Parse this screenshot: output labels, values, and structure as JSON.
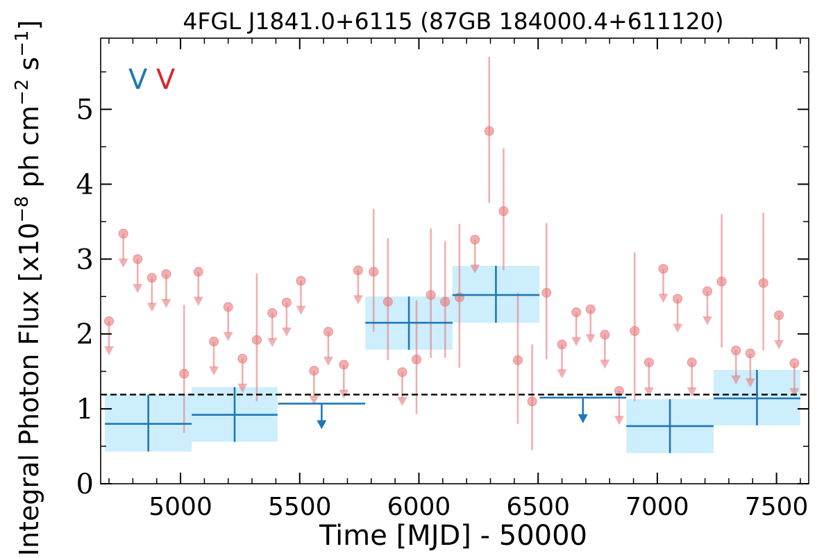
{
  "chart_data": {
    "type": "scatter",
    "title": "4FGL J1841.0+6115 (87GB 184000.4+611120)",
    "xlabel": "Time [MJD] - 50000",
    "ylabel": "Integral Photon Flux [x10^-8 ph cm^-2 s^-1]",
    "xlim": [
      4665,
      7635
    ],
    "ylim": [
      0,
      5.95
    ],
    "xticks": [
      5000,
      5500,
      6000,
      6500,
      7000,
      7500
    ],
    "yticks": [
      0,
      1,
      2,
      3,
      4,
      5
    ],
    "grid": false,
    "legend_labels": [
      {
        "text": "V",
        "color": "#1f77b4"
      },
      {
        "text": "V",
        "color": "#d62728"
      }
    ],
    "mean_flux": 1.19,
    "series": [
      {
        "color": "#1f77b4",
        "band_color": "#cdeefc",
        "points": [
          {
            "x": 4865,
            "x_err": 182,
            "y": 0.8,
            "y_lo": 0.43,
            "y_hi": 1.19,
            "upper_limit": false
          },
          {
            "x": 5227,
            "x_err": 180,
            "y": 0.92,
            "y_lo": 0.56,
            "y_hi": 1.29,
            "upper_limit": false
          },
          {
            "x": 5592,
            "x_err": 183,
            "y": 1.07,
            "upper_limit": true
          },
          {
            "x": 5958,
            "x_err": 183,
            "y": 2.15,
            "y_lo": 1.79,
            "y_hi": 2.5,
            "upper_limit": false
          },
          {
            "x": 6323,
            "x_err": 183,
            "y": 2.52,
            "y_lo": 2.15,
            "y_hi": 2.91,
            "upper_limit": false
          },
          {
            "x": 6688,
            "x_err": 182,
            "y": 1.15,
            "upper_limit": true
          },
          {
            "x": 7053,
            "x_err": 183,
            "y": 0.77,
            "y_lo": 0.41,
            "y_hi": 1.13,
            "upper_limit": false
          },
          {
            "x": 7418,
            "x_err": 182,
            "y": 1.14,
            "y_lo": 0.78,
            "y_hi": 1.52,
            "upper_limit": false
          }
        ]
      },
      {
        "color": "#e8797b",
        "points": [
          {
            "x": 4700,
            "y": 2.17,
            "upper_limit": true
          },
          {
            "x": 4760,
            "y": 3.34,
            "upper_limit": true
          },
          {
            "x": 4820,
            "y": 3.0,
            "upper_limit": true
          },
          {
            "x": 4880,
            "y": 2.75,
            "upper_limit": true
          },
          {
            "x": 4940,
            "y": 2.8,
            "upper_limit": true
          },
          {
            "x": 5015,
            "y": 1.47,
            "y_lo": 0.68,
            "y_hi": 2.39,
            "upper_limit": false
          },
          {
            "x": 5075,
            "y": 2.83,
            "upper_limit": true
          },
          {
            "x": 5140,
            "y": 1.9,
            "upper_limit": true
          },
          {
            "x": 5200,
            "y": 2.36,
            "upper_limit": true
          },
          {
            "x": 5260,
            "y": 1.67,
            "upper_limit": true
          },
          {
            "x": 5320,
            "y": 1.92,
            "y_lo": 1.1,
            "y_hi": 2.81,
            "upper_limit": false
          },
          {
            "x": 5385,
            "y": 2.28,
            "upper_limit": true
          },
          {
            "x": 5445,
            "y": 2.42,
            "upper_limit": true
          },
          {
            "x": 5505,
            "y": 2.71,
            "upper_limit": true
          },
          {
            "x": 5560,
            "y": 1.51,
            "upper_limit": true
          },
          {
            "x": 5620,
            "y": 2.03,
            "upper_limit": true
          },
          {
            "x": 5685,
            "y": 1.59,
            "upper_limit": true
          },
          {
            "x": 5745,
            "y": 2.85,
            "upper_limit": true
          },
          {
            "x": 5810,
            "y": 2.83,
            "y_lo": 2.03,
            "y_hi": 3.67,
            "upper_limit": false
          },
          {
            "x": 5870,
            "y": 2.43,
            "y_lo": 1.65,
            "y_hi": 3.28,
            "upper_limit": false
          },
          {
            "x": 5930,
            "y": 1.49,
            "upper_limit": true
          },
          {
            "x": 5990,
            "y": 1.66,
            "y_lo": 0.93,
            "y_hi": 2.45,
            "upper_limit": false
          },
          {
            "x": 6050,
            "y": 2.52,
            "y_lo": 1.68,
            "y_hi": 3.41,
            "upper_limit": false
          },
          {
            "x": 6110,
            "y": 2.43,
            "y_lo": 1.68,
            "y_hi": 3.24,
            "upper_limit": false
          },
          {
            "x": 6170,
            "y": 2.49,
            "y_lo": 1.55,
            "y_hi": 3.47,
            "upper_limit": false
          },
          {
            "x": 6235,
            "y": 3.26,
            "upper_limit": true
          },
          {
            "x": 6295,
            "y": 4.71,
            "y_lo": 3.75,
            "y_hi": 5.7,
            "upper_limit": false
          },
          {
            "x": 6355,
            "y": 3.64,
            "y_lo": 2.85,
            "y_hi": 4.48,
            "upper_limit": false
          },
          {
            "x": 6415,
            "y": 1.65,
            "y_lo": 0.8,
            "y_hi": 2.55,
            "upper_limit": false
          },
          {
            "x": 6475,
            "y": 1.1,
            "y_lo": 0.45,
            "y_hi": 1.86,
            "upper_limit": false
          },
          {
            "x": 6535,
            "y": 2.55,
            "y_lo": 1.66,
            "y_hi": 3.48,
            "upper_limit": false
          },
          {
            "x": 6600,
            "y": 1.86,
            "upper_limit": true
          },
          {
            "x": 6660,
            "y": 2.29,
            "upper_limit": true
          },
          {
            "x": 6720,
            "y": 2.33,
            "upper_limit": true
          },
          {
            "x": 6780,
            "y": 1.99,
            "upper_limit": true
          },
          {
            "x": 6840,
            "y": 1.24,
            "upper_limit": true
          },
          {
            "x": 6905,
            "y": 2.04,
            "y_lo": 1.1,
            "y_hi": 3.09,
            "upper_limit": false
          },
          {
            "x": 6965,
            "y": 1.62,
            "upper_limit": true
          },
          {
            "x": 7025,
            "y": 2.87,
            "upper_limit": true
          },
          {
            "x": 7085,
            "y": 2.47,
            "upper_limit": true
          },
          {
            "x": 7145,
            "y": 1.62,
            "upper_limit": true
          },
          {
            "x": 7210,
            "y": 2.57,
            "upper_limit": true
          },
          {
            "x": 7270,
            "y": 2.7,
            "y_lo": 1.82,
            "y_hi": 3.6,
            "upper_limit": false
          },
          {
            "x": 7330,
            "y": 1.78,
            "upper_limit": true
          },
          {
            "x": 7390,
            "y": 1.74,
            "upper_limit": true
          },
          {
            "x": 7445,
            "y": 2.68,
            "y_lo": 1.78,
            "y_hi": 3.62,
            "upper_limit": false
          },
          {
            "x": 7510,
            "y": 2.25,
            "upper_limit": true
          },
          {
            "x": 7575,
            "y": 1.61,
            "upper_limit": true
          }
        ]
      }
    ]
  }
}
